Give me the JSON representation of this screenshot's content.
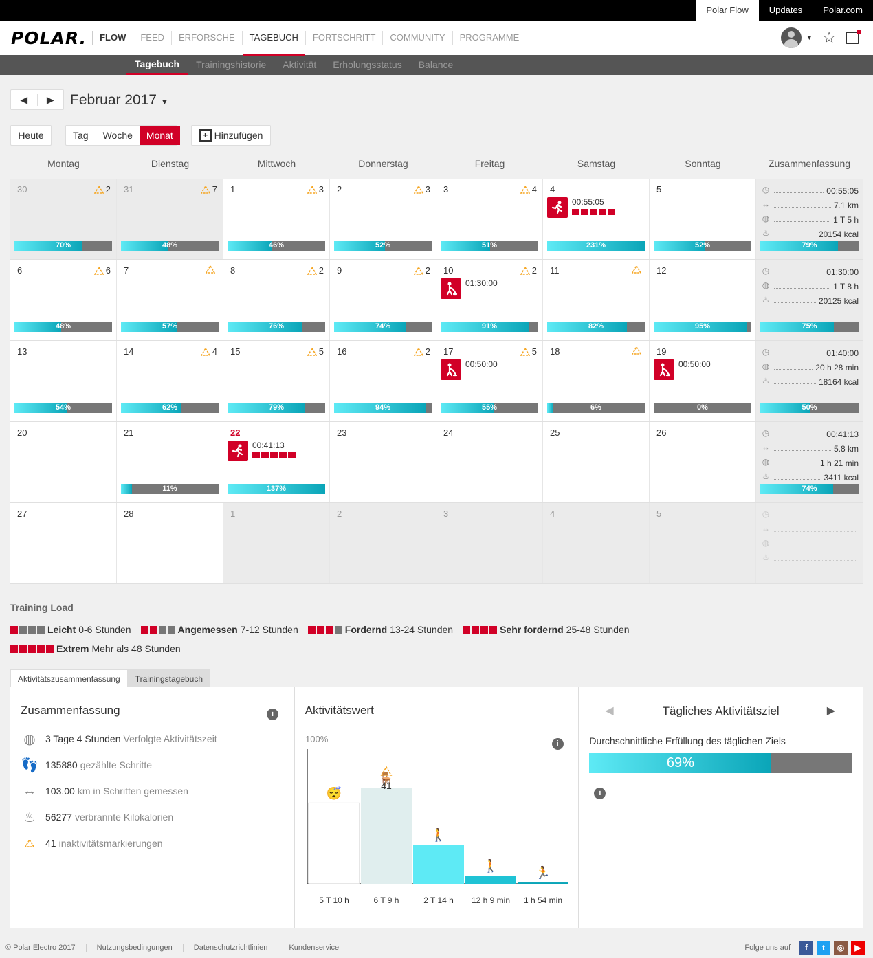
{
  "topbar": {
    "links": [
      "Polar Flow",
      "Updates",
      "Polar.com"
    ]
  },
  "nav": {
    "logo": "POLAR.",
    "brand": "FLOW",
    "links": [
      "FEED",
      "ERFORSCHE",
      "TAGEBUCH",
      "FORTSCHRITT",
      "COMMUNITY",
      "PROGRAMME"
    ]
  },
  "subnav": [
    "Tagebuch",
    "Trainingshistorie",
    "Aktivität",
    "Erholungsstatus",
    "Balance"
  ],
  "controls": {
    "month": "Februar 2017",
    "today": "Heute",
    "views": [
      "Tag",
      "Woche",
      "Monat"
    ],
    "add": "Hinzufügen"
  },
  "weekdays": [
    "Montag",
    "Dienstag",
    "Mittwoch",
    "Donnerstag",
    "Freitag",
    "Samstag",
    "Sonntag",
    "Zusammenfassung"
  ],
  "weeks": [
    {
      "days": [
        {
          "d": "30",
          "grey": true,
          "inact": "2",
          "pct": "70%",
          "p": 70
        },
        {
          "d": "31",
          "grey": true,
          "inact": "7",
          "pct": "48%",
          "p": 48
        },
        {
          "d": "1",
          "inact": "3",
          "pct": "46%",
          "p": 46
        },
        {
          "d": "2",
          "inact": "3",
          "pct": "52%",
          "p": 52
        },
        {
          "d": "3",
          "inact": "4",
          "pct": "51%",
          "p": 51
        },
        {
          "d": "4",
          "pct": "231%",
          "p": 100,
          "ev": {
            "type": "run",
            "time": "00:55:05",
            "load": 5
          }
        },
        {
          "d": "5",
          "pct": "52%",
          "p": 52
        }
      ],
      "sum": [
        {
          "ic": "timer",
          "v": "00:55:05"
        },
        {
          "ic": "distance",
          "v": "7.1 km"
        },
        {
          "ic": "activity",
          "v": "1 T 5 h"
        },
        {
          "ic": "flame",
          "v": "20154 kcal"
        }
      ],
      "sumpct": "79%",
      "sump": 79
    },
    {
      "days": [
        {
          "d": "6",
          "inact": "6",
          "pct": "48%",
          "p": 48
        },
        {
          "d": "7",
          "inact": "",
          "pct": "57%",
          "p": 57
        },
        {
          "d": "8",
          "inact": "2",
          "pct": "76%",
          "p": 76
        },
        {
          "d": "9",
          "inact": "2",
          "pct": "74%",
          "p": 74
        },
        {
          "d": "10",
          "inact": "2",
          "pct": "91%",
          "p": 91,
          "ev": {
            "type": "hockey",
            "time": "01:30:00"
          }
        },
        {
          "d": "11",
          "inact": "",
          "pct": "82%",
          "p": 82
        },
        {
          "d": "12",
          "pct": "95%",
          "p": 95
        }
      ],
      "sum": [
        {
          "ic": "timer",
          "v": "01:30:00"
        },
        {
          "ic": "activity",
          "v": "1 T 8 h"
        },
        {
          "ic": "flame",
          "v": "20125 kcal"
        }
      ],
      "sumpct": "75%",
      "sump": 75
    },
    {
      "days": [
        {
          "d": "13",
          "pct": "54%",
          "p": 54
        },
        {
          "d": "14",
          "inact": "4",
          "pct": "62%",
          "p": 62
        },
        {
          "d": "15",
          "inact": "5",
          "pct": "79%",
          "p": 79
        },
        {
          "d": "16",
          "inact": "2",
          "pct": "94%",
          "p": 94
        },
        {
          "d": "17",
          "inact": "5",
          "pct": "55%",
          "p": 55,
          "ev": {
            "type": "hockey",
            "time": "00:50:00"
          }
        },
        {
          "d": "18",
          "inact": "",
          "pct": "6%",
          "p": 6
        },
        {
          "d": "19",
          "pct": "0%",
          "p": 0,
          "ev": {
            "type": "hockey",
            "time": "00:50:00"
          }
        }
      ],
      "sum": [
        {
          "ic": "timer",
          "v": "01:40:00"
        },
        {
          "ic": "activity",
          "v": "20 h 28 min"
        },
        {
          "ic": "flame",
          "v": "18164 kcal"
        }
      ],
      "sumpct": "50%",
      "sump": 50
    },
    {
      "days": [
        {
          "d": "20"
        },
        {
          "d": "21",
          "pct": "11%",
          "p": 11
        },
        {
          "d": "22",
          "today": true,
          "pct": "137%",
          "p": 100,
          "ev": {
            "type": "run",
            "time": "00:41:13",
            "load": 5
          }
        },
        {
          "d": "23"
        },
        {
          "d": "24"
        },
        {
          "d": "25"
        },
        {
          "d": "26"
        }
      ],
      "sum": [
        {
          "ic": "timer",
          "v": "00:41:13"
        },
        {
          "ic": "distance",
          "v": "5.8 km"
        },
        {
          "ic": "activity",
          "v": "1 h 21 min"
        },
        {
          "ic": "flame",
          "v": "3411 kcal"
        }
      ],
      "sumpct": "74%",
      "sump": 74
    },
    {
      "days": [
        {
          "d": "27"
        },
        {
          "d": "28"
        },
        {
          "d": "1",
          "grey": true
        },
        {
          "d": "2",
          "grey": true
        },
        {
          "d": "3",
          "grey": true
        },
        {
          "d": "4",
          "grey": true
        },
        {
          "d": "5",
          "grey": true
        }
      ],
      "sum": [
        {
          "ic": "timer",
          "v": ""
        },
        {
          "ic": "distance",
          "v": ""
        },
        {
          "ic": "activity",
          "v": ""
        },
        {
          "ic": "flame",
          "v": ""
        }
      ],
      "empty": true
    }
  ],
  "legend": {
    "title": "Training Load",
    "items": [
      {
        "n": 1,
        "b": "Leicht",
        "t": "0-6 Stunden"
      },
      {
        "n": 2,
        "b": "Angemessen",
        "t": "7-12 Stunden"
      },
      {
        "n": 3,
        "b": "Fordernd",
        "t": "13-24 Stunden"
      },
      {
        "n": 4,
        "b": "Sehr fordernd",
        "t": "25-48 Stunden"
      },
      {
        "n": 5,
        "b": "Extrem",
        "t": "Mehr als 48 Stunden"
      }
    ]
  },
  "tabs": [
    "Aktivitätszusammenfassung",
    "Trainingstagebuch"
  ],
  "summary": {
    "title": "Zusammenfassung",
    "items": [
      {
        "ic": "activity",
        "v": "3 Tage 4 Stunden",
        "l": "Verfolgte Aktivitätszeit"
      },
      {
        "ic": "steps",
        "v": "135880",
        "l": "gezählte Schritte"
      },
      {
        "ic": "distance",
        "v": "103.00",
        "l": "km in Schritten gemessen"
      },
      {
        "ic": "flame",
        "v": "56277",
        "l": "verbrannte Kilokalorien"
      },
      {
        "ic": "inactivity",
        "v": "41",
        "l": "inaktivitätsmarkierungen"
      }
    ]
  },
  "activity": {
    "title": "Aktivitätswert",
    "ymax": "100%",
    "inact": "41",
    "bars": [
      {
        "label": "5 T 10 h",
        "v": 0.6,
        "c": "#ffffff"
      },
      {
        "label": "6 T 9 h",
        "v": 0.71,
        "c": "#e0eeee"
      },
      {
        "label": "2 T 14 h",
        "v": 0.29,
        "c": "#5eeaf5"
      },
      {
        "label": "12 h 9 min",
        "v": 0.06,
        "c": "#1fc3d5"
      },
      {
        "label": "1 h 54 min",
        "v": 0.01,
        "c": "#0aa5b8"
      }
    ]
  },
  "goal": {
    "title": "Tägliches Aktivitätsziel",
    "label": "Durchschnittliche Erfüllung des täglichen Ziels",
    "pct": "69%",
    "p": 69
  },
  "footer": {
    "links": [
      "© Polar Electro 2017",
      "Nutzungsbedingungen",
      "Datenschutzrichtlinien",
      "Kundenservice"
    ],
    "follow": "Folge uns auf"
  },
  "colors": {
    "accent": "#d10027",
    "bar_start": "#5eeaf5",
    "bar_end": "#0aa5b8",
    "inactivity": "#f5a623"
  }
}
